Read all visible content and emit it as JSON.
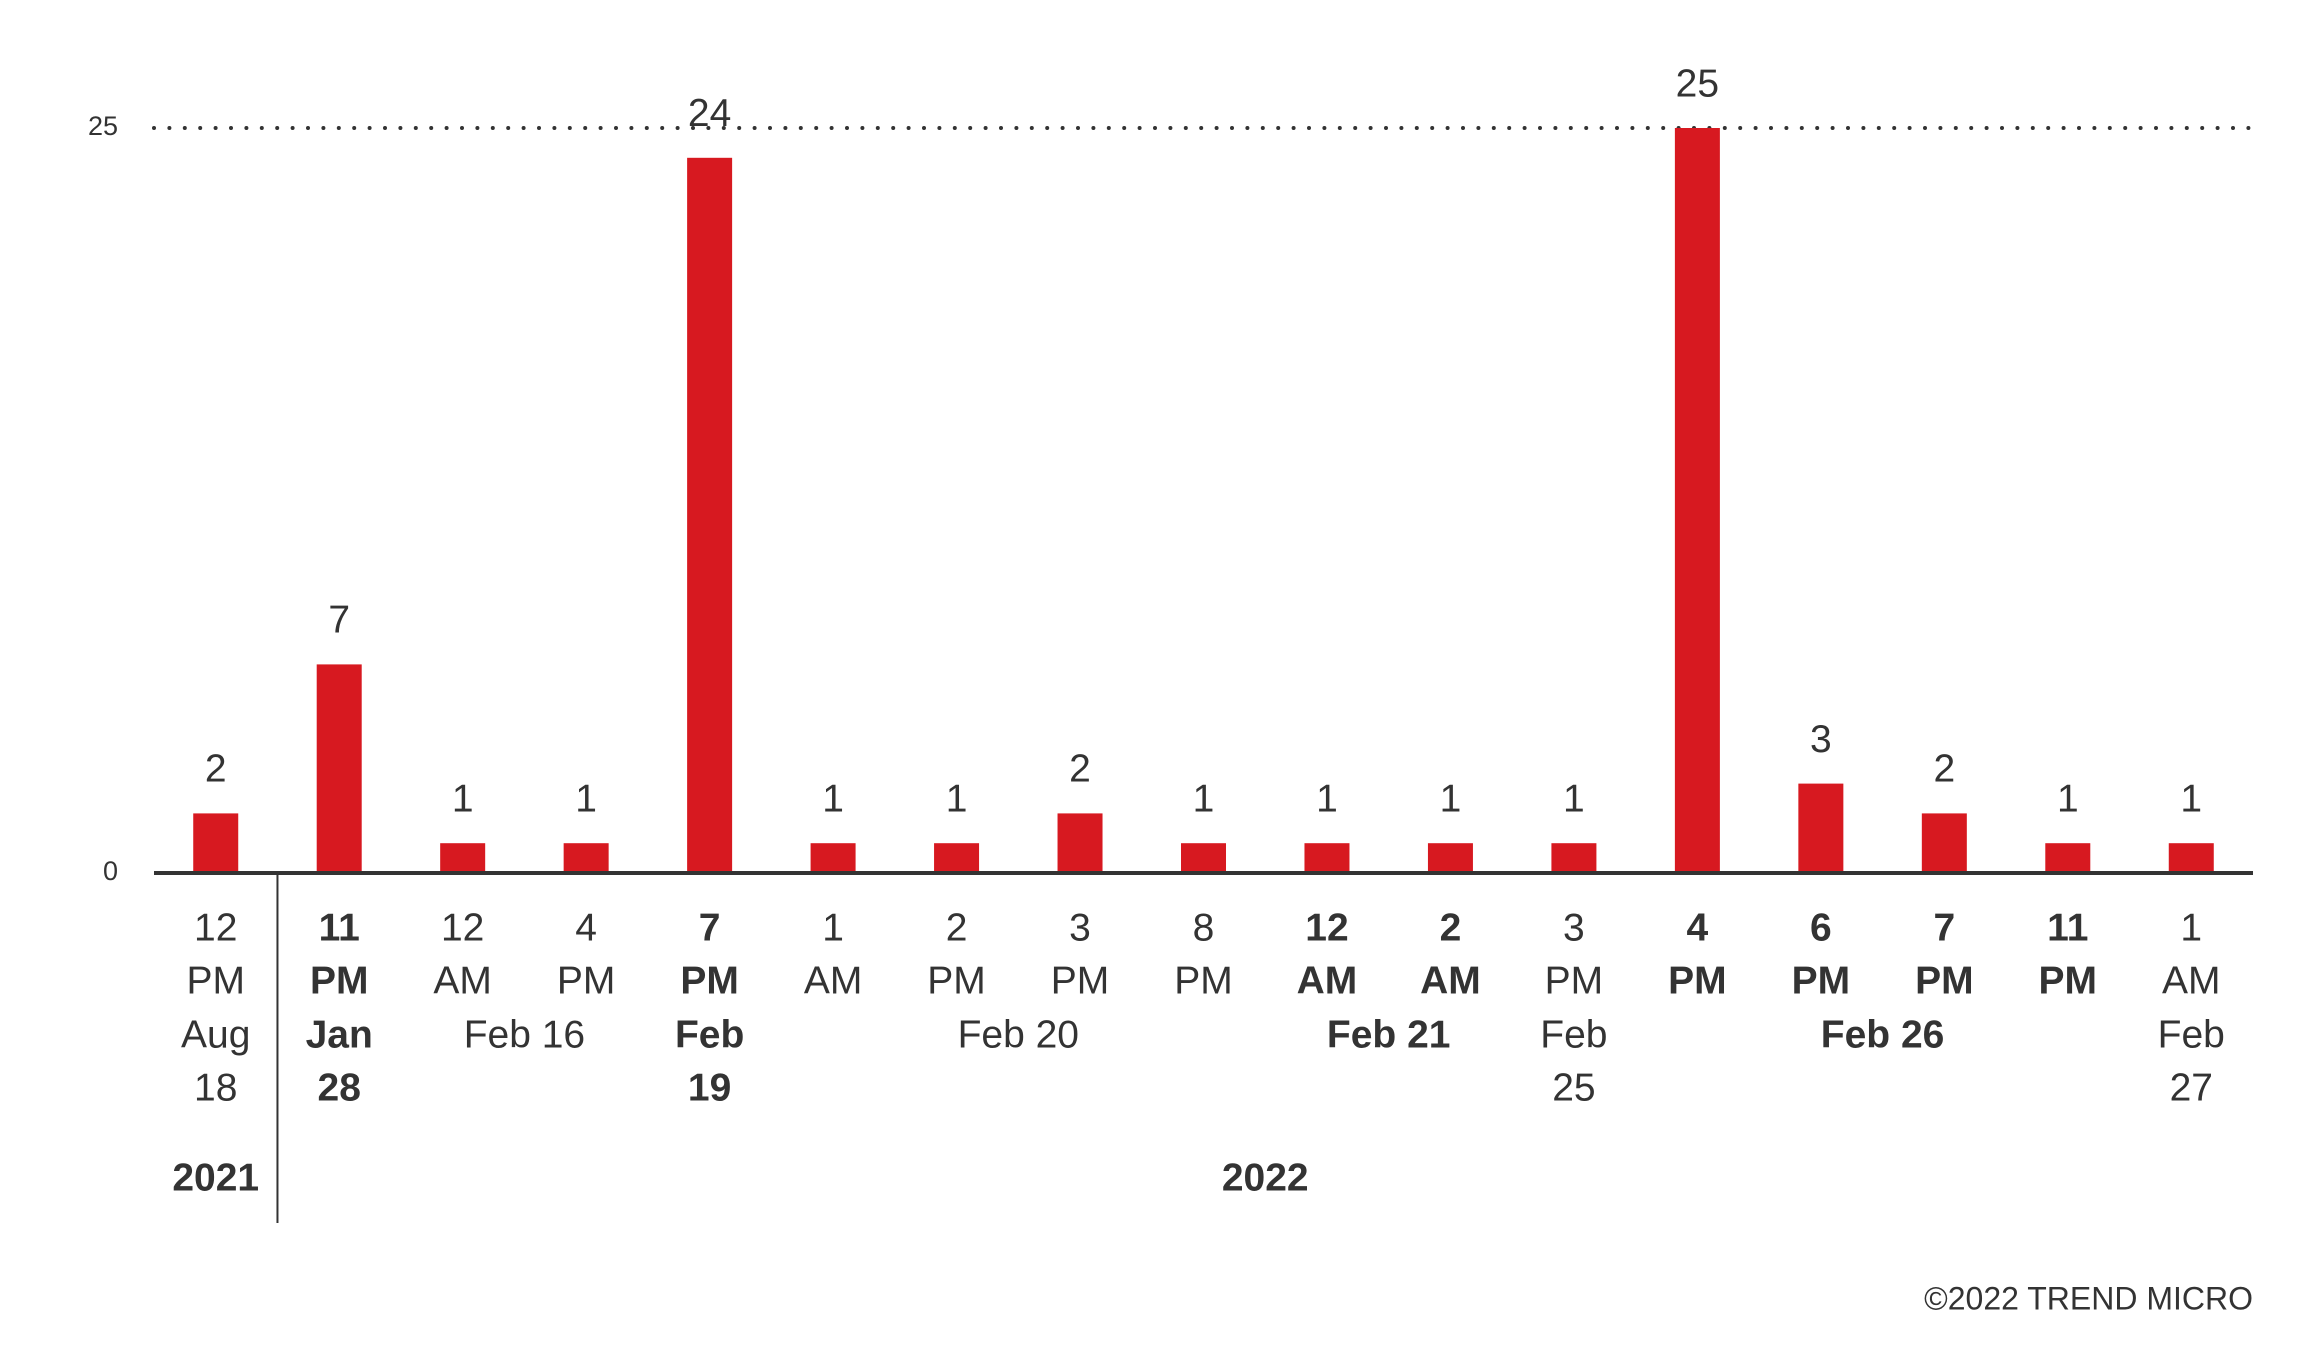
{
  "chart_data": {
    "type": "bar",
    "categories": [
      "12",
      "11",
      "12",
      "4",
      "7",
      "1",
      "2",
      "3",
      "8",
      "12",
      "2",
      "3",
      "4",
      "6",
      "7",
      "11",
      "1"
    ],
    "meridiem": [
      "PM",
      "PM",
      "AM",
      "PM",
      "PM",
      "AM",
      "PM",
      "PM",
      "PM",
      "AM",
      "AM",
      "PM",
      "PM",
      "PM",
      "PM",
      "PM",
      "AM"
    ],
    "values": [
      2,
      7,
      1,
      1,
      24,
      1,
      1,
      2,
      1,
      1,
      1,
      1,
      25,
      3,
      2,
      1,
      1
    ],
    "color": "#d71920",
    "date_groups": [
      {
        "lines": [
          "Aug",
          "18"
        ],
        "start": 0,
        "end": 0,
        "bold": false
      },
      {
        "lines": [
          "Jan",
          "28"
        ],
        "start": 1,
        "end": 1,
        "bold": true
      },
      {
        "lines": [
          "Feb 16"
        ],
        "start": 2,
        "end": 3,
        "bold": false
      },
      {
        "lines": [
          "Feb",
          "19"
        ],
        "start": 4,
        "end": 4,
        "bold": true
      },
      {
        "lines": [
          "Feb 20"
        ],
        "start": 5,
        "end": 8,
        "bold": false
      },
      {
        "lines": [
          "Feb 21"
        ],
        "start": 9,
        "end": 10,
        "bold": true
      },
      {
        "lines": [
          "Feb",
          "25"
        ],
        "start": 11,
        "end": 11,
        "bold": false
      },
      {
        "lines": [
          "Feb 26"
        ],
        "start": 12,
        "end": 15,
        "bold": true
      },
      {
        "lines": [
          "Feb",
          "27"
        ],
        "start": 16,
        "end": 16,
        "bold": false
      }
    ],
    "year_groups": [
      {
        "label": "2021",
        "start": 0,
        "end": 0
      },
      {
        "label": "2022",
        "start": 1,
        "end": 16
      }
    ],
    "ylim": [
      0,
      25
    ],
    "yticks": [
      0,
      25
    ],
    "grid": true,
    "footer": "©2022 TREND MICRO"
  }
}
